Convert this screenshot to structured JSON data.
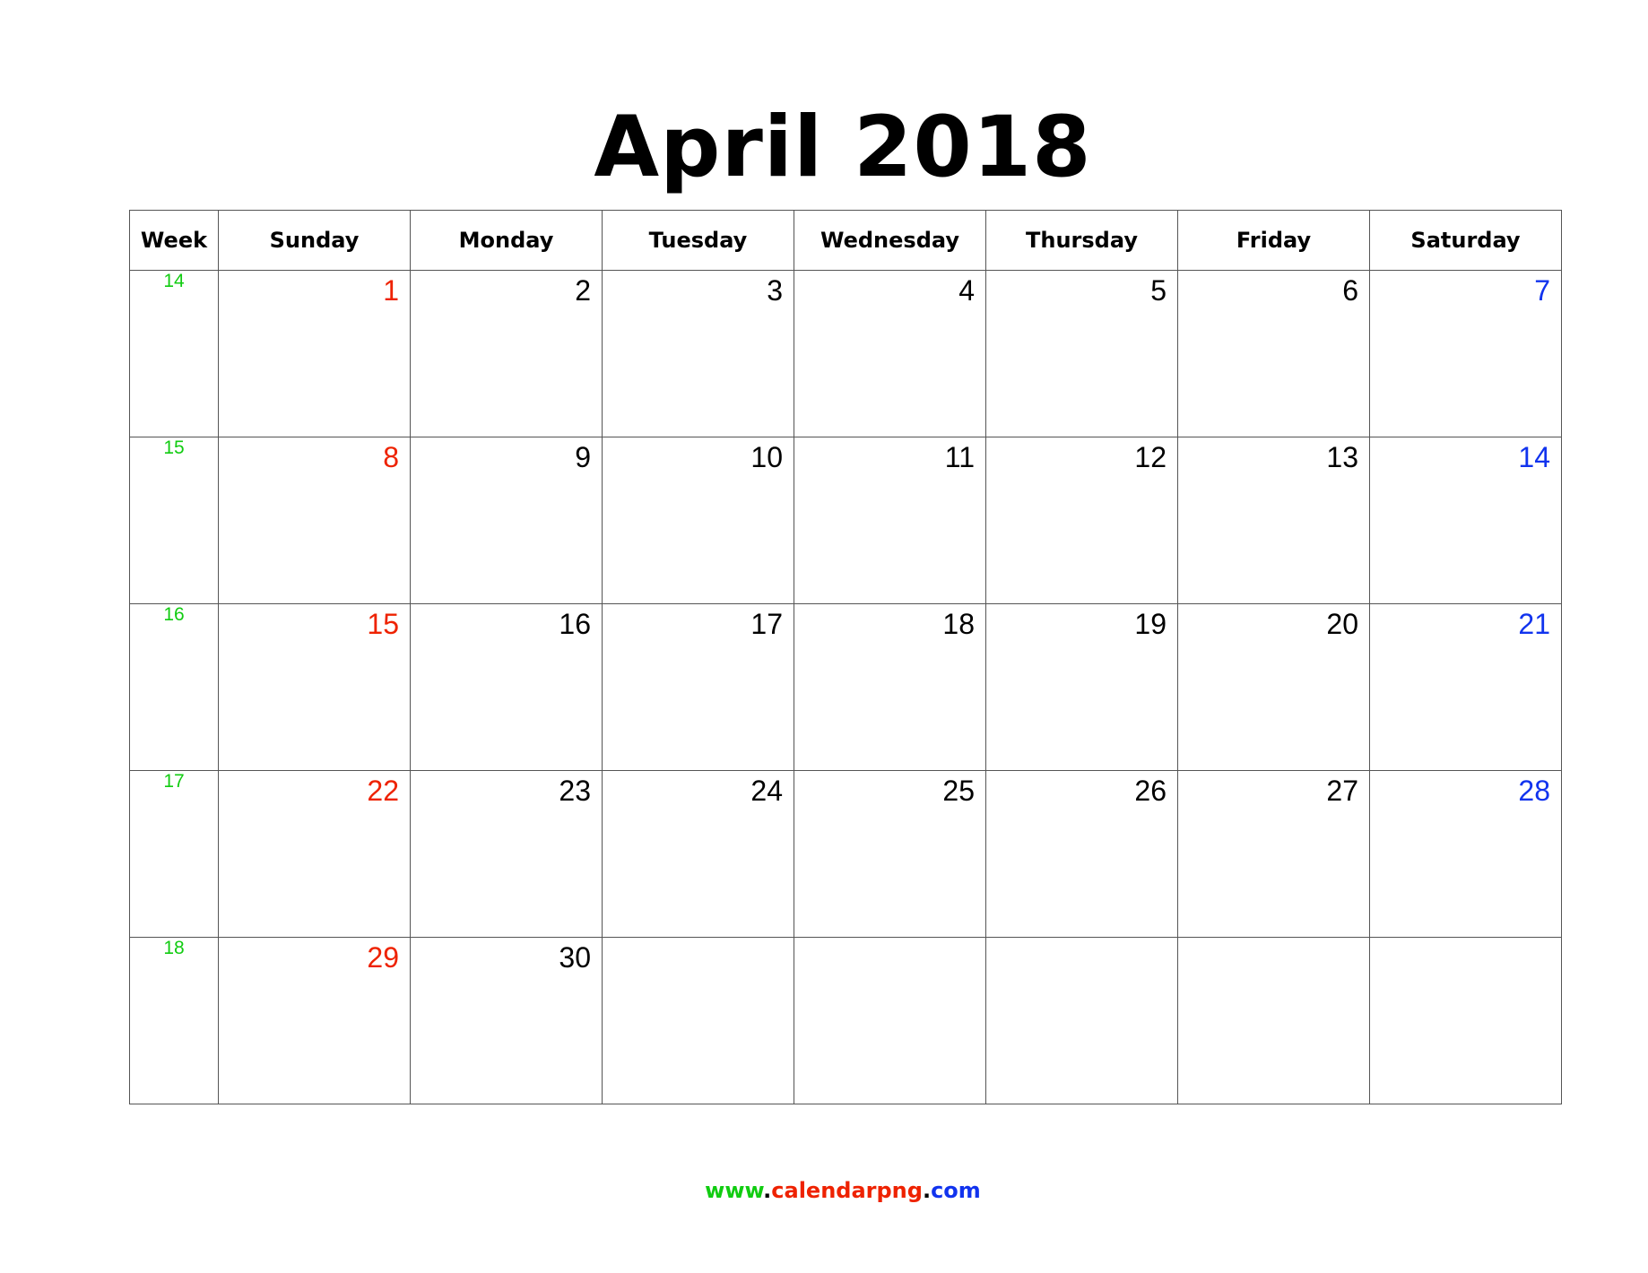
{
  "title": "April 2018",
  "headers": {
    "week": "Week",
    "days": [
      "Sunday",
      "Monday",
      "Tuesday",
      "Wednesday",
      "Thursday",
      "Friday",
      "Saturday"
    ]
  },
  "weeks": [
    {
      "number": "14",
      "days": [
        "1",
        "2",
        "3",
        "4",
        "5",
        "6",
        "7"
      ]
    },
    {
      "number": "15",
      "days": [
        "8",
        "9",
        "10",
        "11",
        "12",
        "13",
        "14"
      ]
    },
    {
      "number": "16",
      "days": [
        "15",
        "16",
        "17",
        "18",
        "19",
        "20",
        "21"
      ]
    },
    {
      "number": "17",
      "days": [
        "22",
        "23",
        "24",
        "25",
        "26",
        "27",
        "28"
      ]
    },
    {
      "number": "18",
      "days": [
        "29",
        "30",
        "",
        "",
        "",
        "",
        ""
      ]
    }
  ],
  "footer": {
    "www": "www",
    "dot1": ".",
    "name": "calendarpng",
    "dot2": ".",
    "tld": "com"
  },
  "colors": {
    "week": "#11cc11",
    "sunday": "#ee2200",
    "saturday": "#1133ee",
    "weekday": "#000000"
  }
}
